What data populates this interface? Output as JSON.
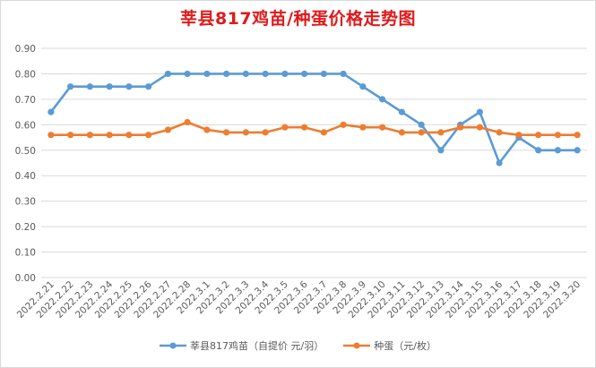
{
  "chart_data": {
    "type": "line",
    "title": "莘县817鸡苗/种蛋价格走势图",
    "categories": [
      "2022.2.21",
      "2022.2.22",
      "2022.2.23",
      "2022.2.24",
      "2022.2.25",
      "2022.2.26",
      "2022.2.27",
      "2022.2.28",
      "2022.3.1",
      "2022.3.2",
      "2022.3.3",
      "2022.3.4",
      "2022.3.5",
      "2022.3.6",
      "2022.3.7",
      "2022.3.8",
      "2022.3.9",
      "2022.3.10",
      "2022.3.11",
      "2022.3.12",
      "2022.3.13",
      "2022.3.14",
      "2022.3.15",
      "2022.3.16",
      "2022.3.17",
      "2022.3.18",
      "2022.3.19",
      "2022.3.20"
    ],
    "series": [
      {
        "name": "莘县817鸡苗（自提价 元/羽）",
        "color": "#5b9bd5",
        "values": [
          0.65,
          0.75,
          0.75,
          0.75,
          0.75,
          0.75,
          0.8,
          0.8,
          0.8,
          0.8,
          0.8,
          0.8,
          0.8,
          0.8,
          0.8,
          0.8,
          0.75,
          0.7,
          0.65,
          0.6,
          0.5,
          0.6,
          0.65,
          0.45,
          0.55,
          0.5,
          0.5,
          0.5
        ]
      },
      {
        "name": "种蛋（元/枚）",
        "color": "#ed7d31",
        "values": [
          0.56,
          0.56,
          0.56,
          0.56,
          0.56,
          0.56,
          0.58,
          0.61,
          0.58,
          0.57,
          0.57,
          0.57,
          0.59,
          0.59,
          0.57,
          0.6,
          0.59,
          0.59,
          0.57,
          0.57,
          0.57,
          0.59,
          0.59,
          0.57,
          0.56,
          0.56,
          0.56,
          0.56
        ]
      }
    ],
    "y_ticks": [
      "0.00",
      "0.10",
      "0.20",
      "0.30",
      "0.40",
      "0.50",
      "0.60",
      "0.70",
      "0.80",
      "0.90"
    ],
    "ylim": [
      0,
      0.9
    ],
    "grid": true,
    "legend_position": "bottom"
  }
}
